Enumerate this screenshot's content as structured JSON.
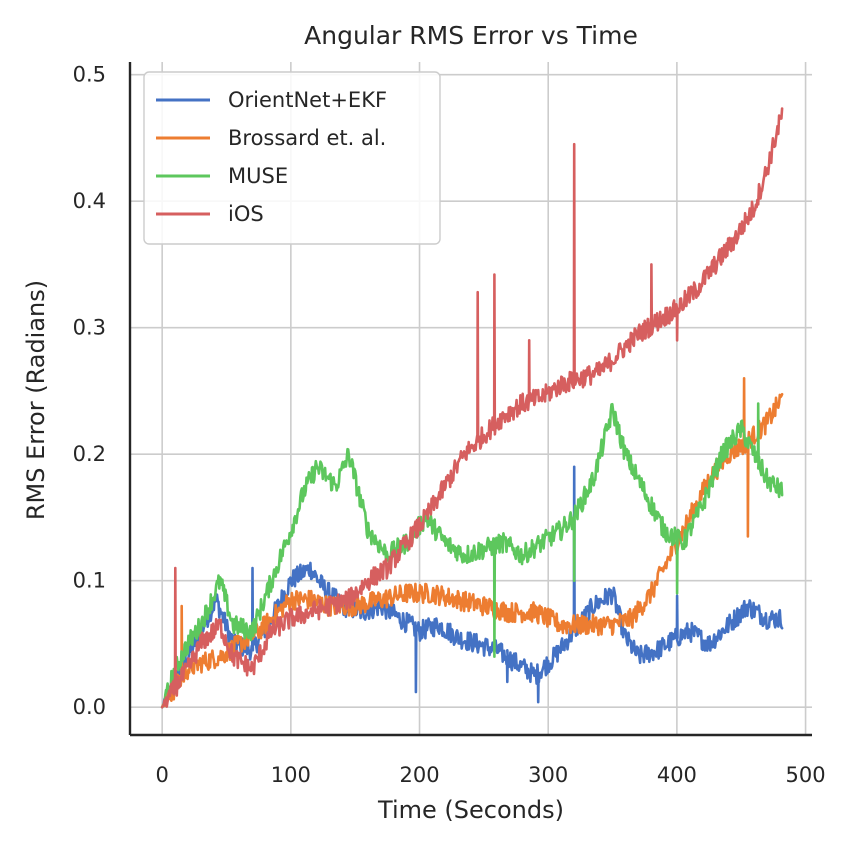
{
  "chart_data": {
    "type": "line",
    "title": "Angular RMS Error vs Time",
    "xlabel": "Time (Seconds)",
    "ylabel": "RMS Error (Radians)",
    "xlim": [
      -25,
      505
    ],
    "ylim": [
      -0.022,
      0.51
    ],
    "xticks": [
      0,
      100,
      200,
      300,
      400,
      500
    ],
    "yticks": [
      0.0,
      0.1,
      0.2,
      0.3,
      0.4,
      0.5
    ],
    "xtick_labels": [
      "0",
      "100",
      "200",
      "300",
      "400",
      "500"
    ],
    "ytick_labels": [
      "0.0",
      "0.1",
      "0.2",
      "0.3",
      "0.4",
      "0.5"
    ],
    "grid": true,
    "legend_position": "top-left",
    "series": [
      {
        "name": "OrientNet+EKF",
        "color": "#4472c4",
        "x": [
          0,
          10,
          20,
          30,
          42,
          55,
          70,
          85,
          100,
          115,
          125,
          140,
          155,
          170,
          185,
          200,
          215,
          230,
          245,
          260,
          275,
          290,
          305,
          320,
          335,
          350,
          360,
          370,
          385,
          400,
          410,
          425,
          440,
          455,
          470,
          482
        ],
        "y": [
          0.0,
          0.02,
          0.04,
          0.06,
          0.085,
          0.05,
          0.045,
          0.07,
          0.1,
          0.11,
          0.095,
          0.08,
          0.075,
          0.08,
          0.07,
          0.06,
          0.065,
          0.055,
          0.05,
          0.045,
          0.035,
          0.025,
          0.04,
          0.06,
          0.08,
          0.09,
          0.055,
          0.04,
          0.045,
          0.055,
          0.06,
          0.05,
          0.065,
          0.08,
          0.07,
          0.07
        ],
        "spikes": [
          [
            70,
            0.11
          ],
          [
            197,
            0.012
          ],
          [
            268,
            0.02
          ],
          [
            292,
            0.004
          ],
          [
            320,
            0.19
          ],
          [
            400,
            0.088
          ]
        ]
      },
      {
        "name": "Brossard et. al.",
        "color": "#ed7d31",
        "x": [
          0,
          10,
          20,
          30,
          45,
          60,
          75,
          90,
          100,
          115,
          130,
          150,
          170,
          190,
          210,
          230,
          250,
          270,
          290,
          310,
          330,
          350,
          365,
          380,
          395,
          410,
          425,
          440,
          455,
          470,
          482
        ],
        "y": [
          0.0,
          0.015,
          0.03,
          0.035,
          0.04,
          0.05,
          0.06,
          0.075,
          0.085,
          0.085,
          0.08,
          0.08,
          0.085,
          0.09,
          0.09,
          0.085,
          0.08,
          0.075,
          0.075,
          0.065,
          0.065,
          0.065,
          0.07,
          0.09,
          0.12,
          0.15,
          0.18,
          0.2,
          0.21,
          0.225,
          0.245
        ],
        "spikes": [
          [
            15,
            0.08
          ],
          [
            455,
            0.135
          ],
          [
            452,
            0.26
          ]
        ]
      },
      {
        "name": "MUSE",
        "color": "#5dc75d",
        "x": [
          0,
          10,
          20,
          30,
          45,
          55,
          70,
          85,
          100,
          110,
          120,
          135,
          145,
          160,
          175,
          190,
          205,
          220,
          235,
          250,
          265,
          280,
          295,
          310,
          320,
          335,
          350,
          360,
          375,
          390,
          405,
          420,
          435,
          450,
          460,
          470,
          482
        ],
        "y": [
          0.0,
          0.03,
          0.05,
          0.065,
          0.1,
          0.065,
          0.06,
          0.1,
          0.14,
          0.17,
          0.19,
          0.175,
          0.2,
          0.14,
          0.12,
          0.13,
          0.15,
          0.13,
          0.12,
          0.125,
          0.13,
          0.12,
          0.13,
          0.14,
          0.15,
          0.18,
          0.235,
          0.2,
          0.17,
          0.14,
          0.13,
          0.16,
          0.2,
          0.22,
          0.2,
          0.18,
          0.17
        ],
        "spikes": [
          [
            258,
            0.04
          ],
          [
            320,
            0.1
          ],
          [
            400,
            0.09
          ],
          [
            463,
            0.24
          ]
        ]
      },
      {
        "name": "iOS",
        "color": "#d65f5f",
        "x": [
          0,
          10,
          20,
          30,
          45,
          55,
          70,
          85,
          100,
          115,
          130,
          145,
          160,
          175,
          190,
          205,
          220,
          235,
          250,
          265,
          280,
          295,
          310,
          325,
          340,
          355,
          370,
          385,
          400,
          415,
          430,
          445,
          460,
          470,
          482
        ],
        "y": [
          0.0,
          0.015,
          0.03,
          0.05,
          0.065,
          0.04,
          0.03,
          0.06,
          0.07,
          0.075,
          0.08,
          0.085,
          0.1,
          0.11,
          0.13,
          0.15,
          0.175,
          0.2,
          0.215,
          0.23,
          0.24,
          0.245,
          0.255,
          0.26,
          0.265,
          0.28,
          0.295,
          0.305,
          0.315,
          0.33,
          0.35,
          0.37,
          0.395,
          0.425,
          0.47
        ],
        "spikes": [
          [
            10,
            0.11
          ],
          [
            245,
            0.328
          ],
          [
            258,
            0.342
          ],
          [
            285,
            0.29
          ],
          [
            320,
            0.445
          ],
          [
            380,
            0.35
          ],
          [
            400,
            0.29
          ]
        ]
      }
    ]
  }
}
